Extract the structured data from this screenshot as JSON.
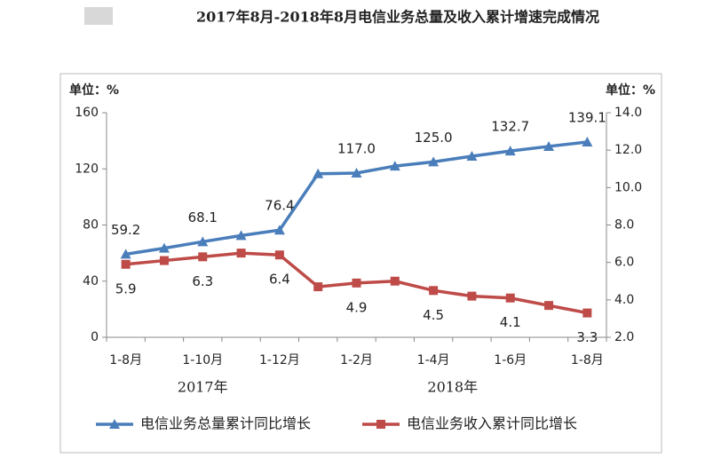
{
  "chart_data": {
    "type": "line",
    "title": "2017年8月-2018年8月电信业务总量及收入累计增速完成情况",
    "y_unit_label": "单位：%",
    "y2_unit_label": "单位：%",
    "categories": [
      "1-8月",
      null,
      "1-10月",
      null,
      "1-12月",
      null,
      "1-2月",
      null,
      "1-4月",
      null,
      "1-6月",
      null,
      "1-8月"
    ],
    "x_group_labels": [
      "2017年",
      "2018年"
    ],
    "ylim": [
      0,
      160
    ],
    "yticks": [
      0,
      40,
      80,
      120,
      160
    ],
    "y2lim": [
      2,
      14
    ],
    "y2ticks": [
      {
        "value": 2,
        "label": "2.0"
      },
      {
        "value": 4,
        "label": "4.0"
      },
      {
        "value": 6,
        "label": "6.0"
      },
      {
        "value": 8,
        "label": "8.0"
      },
      {
        "value": 10,
        "label": "10.0"
      },
      {
        "value": 12,
        "label": "12.0"
      },
      {
        "value": 14,
        "label": "14.0"
      }
    ],
    "legend": "bottom",
    "series": [
      {
        "name": "电信业务总量累计同比增长",
        "color": "#4a7ebb",
        "marker": "triangle",
        "values": [
          59.2,
          63.5,
          68.1,
          72.5,
          76.4,
          116.5,
          117.0,
          122.0,
          125.0,
          129.0,
          132.7,
          136.0,
          139.1
        ],
        "value_labels": [
          "59.2",
          null,
          "68.1",
          null,
          "76.4",
          null,
          "117.0",
          null,
          "125.0",
          null,
          "132.7",
          null,
          "139.1"
        ]
      },
      {
        "name": "电信业务收入累计同比增长",
        "color": "#be4b48",
        "marker": "square",
        "axis": "y2",
        "values": [
          5.9,
          6.1,
          6.3,
          6.5,
          6.4,
          4.7,
          4.9,
          5.0,
          4.5,
          4.2,
          4.1,
          3.7,
          3.3
        ],
        "value_labels": [
          "5.9",
          null,
          "6.3",
          null,
          "6.4",
          null,
          "4.9",
          null,
          "4.5",
          null,
          "4.1",
          null,
          "3.3"
        ]
      }
    ]
  }
}
